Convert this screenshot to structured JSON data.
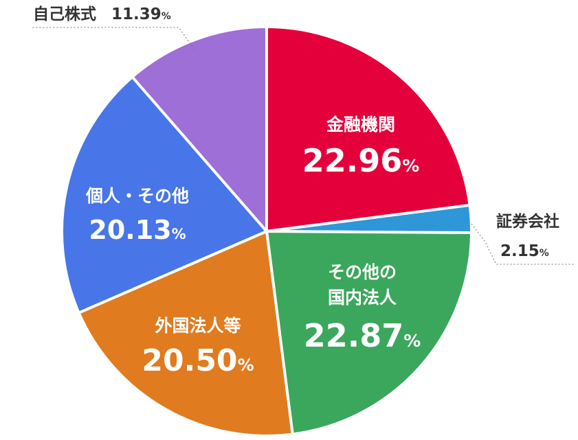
{
  "chart_data": {
    "type": "pie",
    "slices": [
      {
        "name": "金融機関",
        "lines": [
          "金融機関"
        ],
        "value": 22.96,
        "label": "22.96",
        "unit": "%",
        "color": "#E4003A",
        "label_position": "inside"
      },
      {
        "name": "証券会社",
        "lines": [
          "証券会社"
        ],
        "value": 2.15,
        "label": "2.15",
        "unit": "%",
        "color": "#2E97D8",
        "label_position": "outside-right"
      },
      {
        "name": "その他の国内法人",
        "lines": [
          "その他の",
          "国内法人"
        ],
        "value": 22.87,
        "label": "22.87",
        "unit": "%",
        "color": "#3BA75C",
        "label_position": "inside"
      },
      {
        "name": "外国法人等",
        "lines": [
          "外国法人等"
        ],
        "value": 20.5,
        "label": "20.50",
        "unit": "%",
        "color": "#E07B1F",
        "label_position": "inside"
      },
      {
        "name": "個人・その他",
        "lines": [
          "個人・その他"
        ],
        "value": 20.13,
        "label": "20.13",
        "unit": "%",
        "color": "#4876E8",
        "label_position": "inside"
      },
      {
        "name": "自己株式",
        "lines": [
          "自己株式"
        ],
        "value": 11.39,
        "label": "11.39",
        "unit": "%",
        "color": "#9E6FD6",
        "label_position": "outside-top-left"
      }
    ]
  }
}
